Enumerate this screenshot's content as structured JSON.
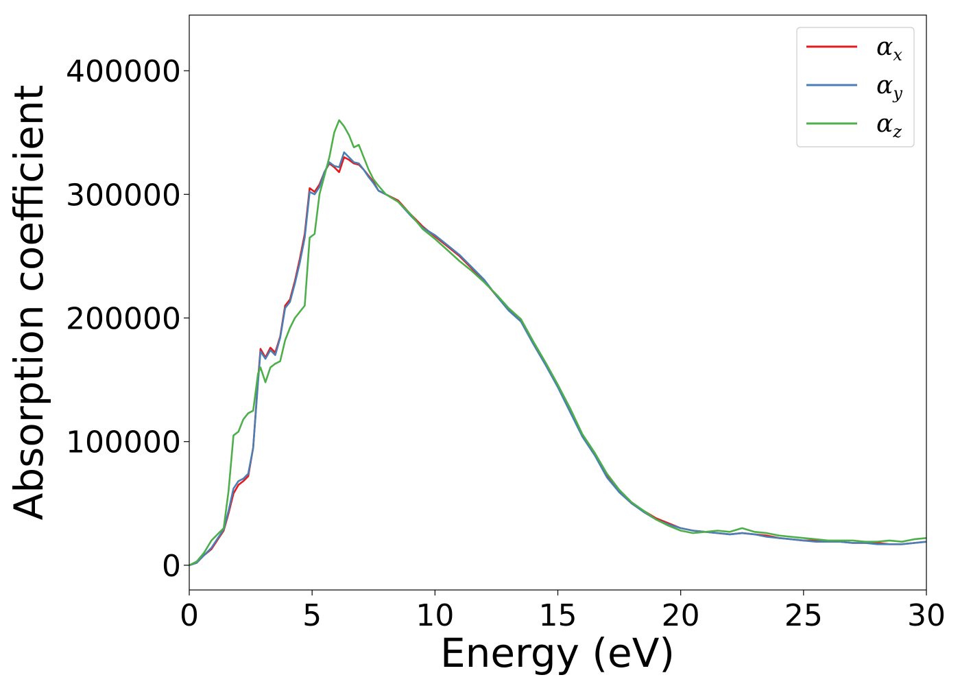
{
  "chart_data": {
    "type": "line",
    "xlabel": "Energy (eV)",
    "ylabel": "Absorption coefficient",
    "xlim": [
      0,
      30
    ],
    "ylim": [
      -20000,
      445000
    ],
    "xticks": [
      0,
      5,
      10,
      15,
      20,
      25,
      30
    ],
    "yticks": [
      0,
      100000,
      200000,
      300000,
      400000
    ],
    "xtick_labels": [
      "0",
      "5",
      "10",
      "15",
      "20",
      "25",
      "30"
    ],
    "ytick_labels": [
      "0",
      "100000",
      "200000",
      "300000",
      "400000"
    ],
    "grid": false,
    "legend_position": "top-right",
    "series": [
      {
        "name": "α",
        "subscript": "x",
        "color": "#e41a1c",
        "points": [
          [
            0,
            0
          ],
          [
            0.3,
            2000
          ],
          [
            0.6,
            8000
          ],
          [
            0.9,
            13000
          ],
          [
            1.2,
            22000
          ],
          [
            1.4,
            28000
          ],
          [
            1.6,
            42000
          ],
          [
            1.8,
            58000
          ],
          [
            2.0,
            65000
          ],
          [
            2.2,
            68000
          ],
          [
            2.4,
            72000
          ],
          [
            2.6,
            95000
          ],
          [
            2.8,
            150000
          ],
          [
            2.9,
            175000
          ],
          [
            3.1,
            168000
          ],
          [
            3.3,
            176000
          ],
          [
            3.5,
            172000
          ],
          [
            3.7,
            185000
          ],
          [
            3.9,
            210000
          ],
          [
            4.1,
            215000
          ],
          [
            4.3,
            230000
          ],
          [
            4.5,
            248000
          ],
          [
            4.7,
            268000
          ],
          [
            4.9,
            305000
          ],
          [
            5.1,
            302000
          ],
          [
            5.3,
            308000
          ],
          [
            5.5,
            318000
          ],
          [
            5.7,
            325000
          ],
          [
            5.9,
            322000
          ],
          [
            6.1,
            318000
          ],
          [
            6.3,
            330000
          ],
          [
            6.5,
            328000
          ],
          [
            6.7,
            325000
          ],
          [
            6.9,
            324000
          ],
          [
            7.1,
            320000
          ],
          [
            7.3,
            315000
          ],
          [
            7.5,
            310000
          ],
          [
            7.7,
            303000
          ],
          [
            8.0,
            300000
          ],
          [
            8.5,
            295000
          ],
          [
            9.0,
            284000
          ],
          [
            9.5,
            274000
          ],
          [
            10.0,
            266000
          ],
          [
            10.5,
            258000
          ],
          [
            11.0,
            250000
          ],
          [
            11.5,
            240000
          ],
          [
            12.0,
            230000
          ],
          [
            12.5,
            218000
          ],
          [
            13.0,
            207000
          ],
          [
            13.5,
            198000
          ],
          [
            14.0,
            180000
          ],
          [
            14.5,
            163000
          ],
          [
            15.0,
            145000
          ],
          [
            15.5,
            125000
          ],
          [
            16.0,
            105000
          ],
          [
            16.5,
            90000
          ],
          [
            17.0,
            72000
          ],
          [
            17.5,
            60000
          ],
          [
            18.0,
            50000
          ],
          [
            18.5,
            44000
          ],
          [
            19.0,
            38000
          ],
          [
            19.5,
            34000
          ],
          [
            20.0,
            30000
          ],
          [
            20.5,
            28000
          ],
          [
            21.0,
            27000
          ],
          [
            21.5,
            26000
          ],
          [
            22.0,
            25000
          ],
          [
            22.5,
            26000
          ],
          [
            23.0,
            25000
          ],
          [
            23.5,
            24000
          ],
          [
            24.0,
            22000
          ],
          [
            24.5,
            21000
          ],
          [
            25.0,
            20000
          ],
          [
            25.5,
            20000
          ],
          [
            26.0,
            19000
          ],
          [
            26.5,
            19000
          ],
          [
            27.0,
            18000
          ],
          [
            27.5,
            18000
          ],
          [
            28.0,
            18000
          ],
          [
            28.5,
            17000
          ],
          [
            29.0,
            17000
          ],
          [
            29.5,
            18000
          ],
          [
            30.0,
            19000
          ]
        ]
      },
      {
        "name": "α",
        "subscript": "y",
        "color": "#4a7fb5",
        "points": [
          [
            0,
            0
          ],
          [
            0.3,
            2000
          ],
          [
            0.6,
            8000
          ],
          [
            0.9,
            14000
          ],
          [
            1.2,
            23000
          ],
          [
            1.4,
            29000
          ],
          [
            1.6,
            44000
          ],
          [
            1.8,
            62000
          ],
          [
            2.0,
            68000
          ],
          [
            2.2,
            70000
          ],
          [
            2.4,
            74000
          ],
          [
            2.6,
            95000
          ],
          [
            2.8,
            148000
          ],
          [
            2.9,
            173000
          ],
          [
            3.1,
            167000
          ],
          [
            3.3,
            174000
          ],
          [
            3.5,
            170000
          ],
          [
            3.7,
            184000
          ],
          [
            3.9,
            208000
          ],
          [
            4.1,
            213000
          ],
          [
            4.3,
            228000
          ],
          [
            4.5,
            245000
          ],
          [
            4.7,
            265000
          ],
          [
            4.9,
            302000
          ],
          [
            5.1,
            300000
          ],
          [
            5.3,
            306000
          ],
          [
            5.5,
            318000
          ],
          [
            5.7,
            326000
          ],
          [
            5.9,
            323000
          ],
          [
            6.1,
            322000
          ],
          [
            6.3,
            334000
          ],
          [
            6.5,
            330000
          ],
          [
            6.7,
            326000
          ],
          [
            6.9,
            325000
          ],
          [
            7.1,
            320000
          ],
          [
            7.3,
            314000
          ],
          [
            7.5,
            309000
          ],
          [
            7.7,
            303000
          ],
          [
            8.0,
            300000
          ],
          [
            8.5,
            294000
          ],
          [
            9.0,
            283000
          ],
          [
            9.5,
            273000
          ],
          [
            10.0,
            267000
          ],
          [
            10.5,
            259000
          ],
          [
            11.0,
            251000
          ],
          [
            11.5,
            241000
          ],
          [
            12.0,
            231000
          ],
          [
            12.5,
            218000
          ],
          [
            13.0,
            206000
          ],
          [
            13.5,
            197000
          ],
          [
            14.0,
            179000
          ],
          [
            14.5,
            162000
          ],
          [
            15.0,
            144000
          ],
          [
            15.5,
            124000
          ],
          [
            16.0,
            104000
          ],
          [
            16.5,
            89000
          ],
          [
            17.0,
            71000
          ],
          [
            17.5,
            59000
          ],
          [
            18.0,
            50000
          ],
          [
            18.5,
            43000
          ],
          [
            19.0,
            37000
          ],
          [
            19.5,
            33000
          ],
          [
            20.0,
            30000
          ],
          [
            20.5,
            28000
          ],
          [
            21.0,
            27000
          ],
          [
            21.5,
            26000
          ],
          [
            22.0,
            25000
          ],
          [
            22.5,
            26000
          ],
          [
            23.0,
            25000
          ],
          [
            23.5,
            23000
          ],
          [
            24.0,
            22000
          ],
          [
            24.5,
            21000
          ],
          [
            25.0,
            20000
          ],
          [
            25.5,
            19000
          ],
          [
            26.0,
            19000
          ],
          [
            26.5,
            19000
          ],
          [
            27.0,
            18000
          ],
          [
            27.5,
            18000
          ],
          [
            28.0,
            17000
          ],
          [
            28.5,
            17000
          ],
          [
            29.0,
            17000
          ],
          [
            29.5,
            18000
          ],
          [
            30.0,
            19000
          ]
        ]
      },
      {
        "name": "α",
        "subscript": "z",
        "color": "#4daf4a",
        "points": [
          [
            0,
            0
          ],
          [
            0.3,
            3000
          ],
          [
            0.6,
            10000
          ],
          [
            0.9,
            20000
          ],
          [
            1.2,
            26000
          ],
          [
            1.4,
            30000
          ],
          [
            1.6,
            60000
          ],
          [
            1.8,
            105000
          ],
          [
            2.0,
            108000
          ],
          [
            2.2,
            118000
          ],
          [
            2.4,
            123000
          ],
          [
            2.6,
            125000
          ],
          [
            2.8,
            155000
          ],
          [
            2.9,
            160000
          ],
          [
            3.1,
            148000
          ],
          [
            3.3,
            160000
          ],
          [
            3.5,
            163000
          ],
          [
            3.7,
            165000
          ],
          [
            3.9,
            182000
          ],
          [
            4.1,
            192000
          ],
          [
            4.3,
            200000
          ],
          [
            4.5,
            205000
          ],
          [
            4.7,
            210000
          ],
          [
            4.9,
            265000
          ],
          [
            5.1,
            268000
          ],
          [
            5.3,
            300000
          ],
          [
            5.5,
            315000
          ],
          [
            5.7,
            330000
          ],
          [
            5.9,
            350000
          ],
          [
            6.1,
            360000
          ],
          [
            6.3,
            355000
          ],
          [
            6.5,
            348000
          ],
          [
            6.7,
            338000
          ],
          [
            6.9,
            340000
          ],
          [
            7.1,
            330000
          ],
          [
            7.3,
            320000
          ],
          [
            7.5,
            312000
          ],
          [
            7.7,
            307000
          ],
          [
            8.0,
            300000
          ],
          [
            8.5,
            294000
          ],
          [
            9.0,
            284000
          ],
          [
            9.5,
            272000
          ],
          [
            10.0,
            264000
          ],
          [
            10.5,
            255000
          ],
          [
            11.0,
            246000
          ],
          [
            11.5,
            238000
          ],
          [
            12.0,
            229000
          ],
          [
            12.5,
            219000
          ],
          [
            13.0,
            208000
          ],
          [
            13.5,
            199000
          ],
          [
            14.0,
            181000
          ],
          [
            14.5,
            164000
          ],
          [
            15.0,
            146000
          ],
          [
            15.5,
            127000
          ],
          [
            16.0,
            106000
          ],
          [
            16.5,
            91000
          ],
          [
            17.0,
            74000
          ],
          [
            17.5,
            61000
          ],
          [
            18.0,
            51000
          ],
          [
            18.5,
            44000
          ],
          [
            19.0,
            37000
          ],
          [
            19.5,
            32000
          ],
          [
            20.0,
            28000
          ],
          [
            20.5,
            26000
          ],
          [
            21.0,
            27000
          ],
          [
            21.5,
            28000
          ],
          [
            22.0,
            27000
          ],
          [
            22.5,
            30000
          ],
          [
            23.0,
            27000
          ],
          [
            23.5,
            26000
          ],
          [
            24.0,
            24000
          ],
          [
            24.5,
            23000
          ],
          [
            25.0,
            22000
          ],
          [
            25.5,
            21000
          ],
          [
            26.0,
            20000
          ],
          [
            26.5,
            20000
          ],
          [
            27.0,
            20000
          ],
          [
            27.5,
            19000
          ],
          [
            28.0,
            19000
          ],
          [
            28.5,
            20000
          ],
          [
            29.0,
            19000
          ],
          [
            29.5,
            21000
          ],
          [
            30.0,
            22000
          ]
        ]
      }
    ]
  }
}
